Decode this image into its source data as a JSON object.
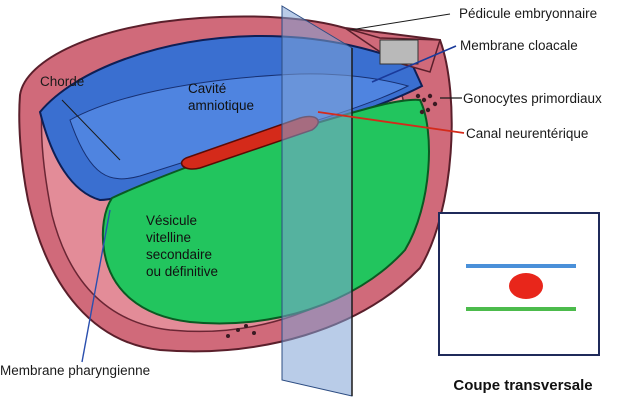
{
  "labels": {
    "pedicule": "Pédicule embryonnaire",
    "membrane_cloacale": "Membrane cloacale",
    "chorde": "Chorde",
    "gonocytes": "Gonocytes primordiaux",
    "canal": "Canal neurentérique",
    "membrane_pharyngienne": "Membrane pharyngienne",
    "cavite": "Cavité\namniotique",
    "vesicule": "Vésicule\nvitelline\nsecondaire\nou définitive"
  },
  "inset": {
    "title": "Coupe transversale"
  },
  "colors": {
    "amnion_blue": "#3a6fd0",
    "yolk_green": "#22c55e",
    "tissue_pink": "#d06a7a",
    "tube_red": "#d42a1a",
    "plane": "#7fa3d6",
    "inset_blue_line": "#4a90d9",
    "inset_green_line": "#4cbb4c",
    "inset_dot": "#e8261b"
  }
}
